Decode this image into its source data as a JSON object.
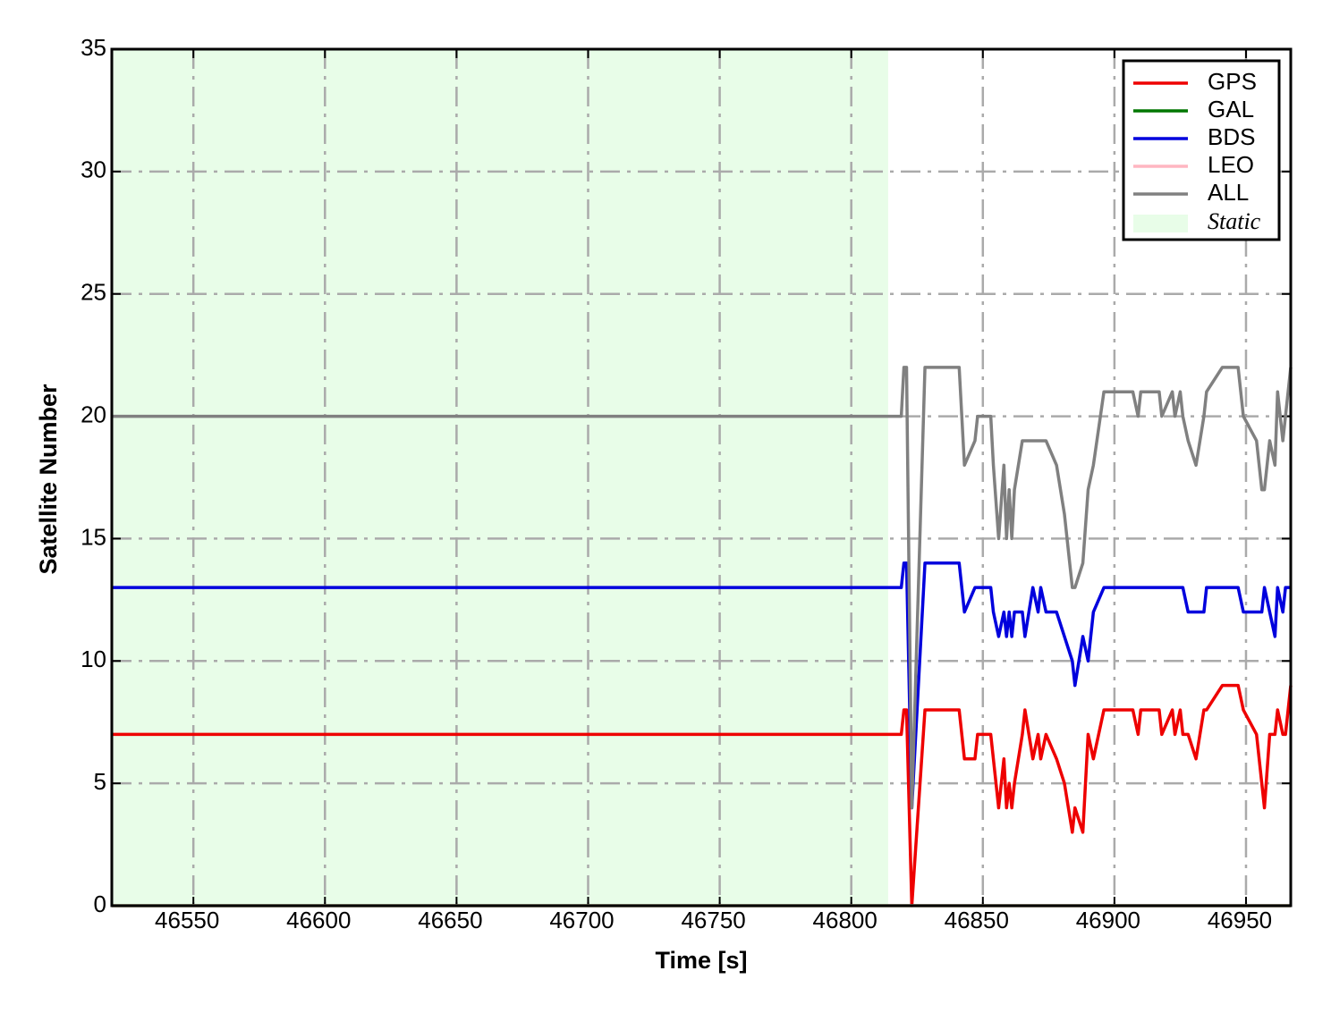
{
  "chart_data": {
    "type": "line",
    "x_label": "Time [s]",
    "y_label": "Satellite Number",
    "xlim": [
      46519,
      46967
    ],
    "ylim": [
      0,
      35
    ],
    "xticks": [
      46550,
      46600,
      46650,
      46700,
      46750,
      46800,
      46850,
      46900,
      46950
    ],
    "yticks": [
      0,
      5,
      10,
      15,
      20,
      25,
      30,
      35
    ],
    "grid": true,
    "legend": "upper right",
    "shaded_region": {
      "name": "Static",
      "color": "#e8fde8",
      "x": [
        46519,
        46814
      ]
    },
    "x": [
      46519,
      46814,
      46819,
      46820,
      46821,
      46823,
      46828,
      46841,
      46843,
      46847,
      46848,
      46853,
      46854,
      46856,
      46858,
      46859,
      46860,
      46861,
      46862,
      46865,
      46866,
      46869,
      46871,
      46872,
      46874,
      46878,
      46881,
      46884,
      46885,
      46888,
      46890,
      46892,
      46896,
      46907,
      46909,
      46910,
      46917,
      46918,
      46922,
      46923,
      46925,
      46926,
      46928,
      46931,
      46934,
      46935,
      46941,
      46947,
      46949,
      46954,
      46956,
      46957,
      46959,
      46961,
      46962,
      46964,
      46965,
      46967
    ],
    "series": [
      {
        "name": "GPS",
        "color": "#ee0000",
        "values": [
          7,
          7,
          7,
          8,
          8,
          0,
          8,
          8,
          6,
          6,
          7,
          7,
          6,
          4,
          6,
          4,
          5,
          4,
          5,
          7,
          8,
          6,
          7,
          6,
          7,
          6,
          5,
          3,
          4,
          3,
          7,
          6,
          8,
          8,
          7,
          8,
          8,
          7,
          8,
          7,
          8,
          7,
          7,
          6,
          8,
          8,
          9,
          9,
          8,
          7,
          5,
          4,
          7,
          7,
          8,
          7,
          7,
          9
        ]
      },
      {
        "name": "GAL",
        "color": "#007700",
        "values": [
          0,
          0,
          0,
          0,
          0,
          0,
          0,
          0,
          0,
          0,
          0,
          0,
          0,
          0,
          0,
          0,
          0,
          0,
          0,
          0,
          0,
          0,
          0,
          0,
          0,
          0,
          0,
          0,
          0,
          0,
          0,
          0,
          0,
          0,
          0,
          0,
          0,
          0,
          0,
          0,
          0,
          0,
          0,
          0,
          0,
          0,
          0,
          0,
          0,
          0,
          0,
          0,
          0,
          0,
          0,
          0,
          0,
          0
        ]
      },
      {
        "name": "BDS",
        "color": "#0000dd",
        "values": [
          13,
          13,
          13,
          14,
          14,
          4,
          14,
          14,
          12,
          13,
          13,
          13,
          12,
          11,
          12,
          11,
          12,
          11,
          12,
          12,
          11,
          13,
          12,
          13,
          12,
          12,
          11,
          10,
          9,
          11,
          10,
          12,
          13,
          13,
          13,
          13,
          13,
          13,
          13,
          13,
          13,
          13,
          12,
          12,
          12,
          13,
          13,
          13,
          12,
          12,
          12,
          13,
          12,
          11,
          13,
          12,
          13,
          13
        ]
      },
      {
        "name": "LEO",
        "color": "#ffb6c1",
        "values": [
          0,
          0,
          0,
          0,
          0,
          0,
          0,
          0,
          0,
          0,
          0,
          0,
          0,
          0,
          0,
          0,
          0,
          0,
          0,
          0,
          0,
          0,
          0,
          0,
          0,
          0,
          0,
          0,
          0,
          0,
          0,
          0,
          0,
          0,
          0,
          0,
          0,
          0,
          0,
          0,
          0,
          0,
          0,
          0,
          0,
          0,
          0,
          0,
          0,
          0,
          0,
          0,
          0,
          0,
          0,
          0,
          0,
          0
        ]
      },
      {
        "name": "ALL",
        "color": "#808080",
        "values": [
          20,
          20,
          20,
          22,
          22,
          4,
          22,
          22,
          18,
          19,
          20,
          20,
          18,
          15,
          18,
          15,
          17,
          15,
          17,
          19,
          19,
          19,
          19,
          19,
          19,
          18,
          16,
          13,
          13,
          14,
          17,
          18,
          21,
          21,
          20,
          21,
          21,
          20,
          21,
          20,
          21,
          20,
          19,
          18,
          20,
          21,
          22,
          22,
          20,
          19,
          17,
          17,
          19,
          18,
          21,
          19,
          20,
          22
        ]
      }
    ]
  }
}
